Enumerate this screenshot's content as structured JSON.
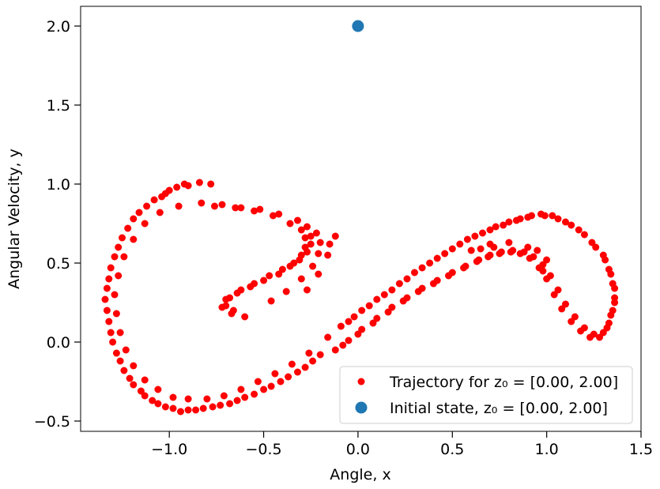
{
  "chart_data": {
    "type": "scatter",
    "xlabel": "Angle, x",
    "ylabel": "Angular Velocity, y",
    "xlim": [
      -1.47,
      1.5
    ],
    "ylim": [
      -0.565,
      2.125
    ],
    "xticks": [
      -1.0,
      -0.5,
      0.0,
      0.5,
      1.0,
      1.5
    ],
    "xtick_labels": [
      "−1.0",
      "−0.5",
      "0.0",
      "0.5",
      "1.0",
      "1.5"
    ],
    "yticks": [
      -0.5,
      0.0,
      0.5,
      1.0,
      1.5,
      2.0
    ],
    "ytick_labels": [
      "−0.5",
      "0.0",
      "0.5",
      "1.0",
      "1.5",
      "2.0"
    ],
    "grid": false,
    "legend_position": "lower-right",
    "legend": [
      {
        "label": "Trajectory for z₀ = [0.00, 2.00]",
        "color": "#ff0000",
        "marker": "small-dot"
      },
      {
        "label": "Initial state, z₀ = [0.00, 2.00]",
        "color": "#1f77b4",
        "marker": "large-dot"
      }
    ],
    "series": [
      {
        "name": "Trajectory for z₀ = [0.00, 2.00]",
        "color": "#ff0000",
        "points": [
          [
            -0.66,
            0.2
          ],
          [
            -0.7,
            0.23
          ],
          [
            -0.68,
            0.28
          ],
          [
            -0.62,
            0.33
          ],
          [
            -0.55,
            0.37
          ],
          [
            -0.47,
            0.42
          ],
          [
            -0.4,
            0.46
          ],
          [
            -0.34,
            0.5
          ],
          [
            -0.3,
            0.55
          ],
          [
            -0.28,
            0.6
          ],
          [
            -0.28,
            0.66
          ],
          [
            -0.3,
            0.71
          ],
          [
            -0.36,
            0.75
          ],
          [
            -0.45,
            0.8
          ],
          [
            -0.55,
            0.83
          ],
          [
            -0.65,
            0.85
          ],
          [
            -0.76,
            0.86
          ],
          [
            -0.6,
            0.16
          ],
          [
            -0.67,
            0.18
          ],
          [
            -0.72,
            0.22
          ],
          [
            -0.7,
            0.27
          ],
          [
            -0.64,
            0.31
          ],
          [
            -0.57,
            0.35
          ],
          [
            -0.5,
            0.39
          ],
          [
            -0.42,
            0.43
          ],
          [
            -0.36,
            0.48
          ],
          [
            -0.31,
            0.52
          ],
          [
            -0.27,
            0.57
          ],
          [
            -0.25,
            0.62
          ],
          [
            -0.25,
            0.67
          ],
          [
            -0.27,
            0.73
          ],
          [
            -0.32,
            0.77
          ],
          [
            -0.42,
            0.81
          ],
          [
            -0.52,
            0.84
          ],
          [
            -0.62,
            0.85
          ],
          [
            -0.72,
            0.87
          ],
          [
            -0.46,
            0.26
          ],
          [
            -0.38,
            0.32
          ],
          [
            -0.3,
            0.4
          ],
          [
            -0.24,
            0.48
          ],
          [
            -0.21,
            0.56
          ],
          [
            -0.2,
            0.63
          ],
          [
            -0.22,
            0.69
          ],
          [
            -0.15,
            0.62
          ],
          [
            -0.12,
            0.67
          ],
          [
            -0.16,
            0.55
          ],
          [
            -0.21,
            0.43
          ],
          [
            -0.27,
            0.33
          ],
          [
            -1.0,
            0.96
          ],
          [
            -1.08,
            0.9
          ],
          [
            -1.16,
            0.82
          ],
          [
            -1.22,
            0.72
          ],
          [
            -1.27,
            0.6
          ],
          [
            -1.31,
            0.47
          ],
          [
            -1.33,
            0.34
          ],
          [
            -1.33,
            0.2
          ],
          [
            -1.31,
            0.06
          ],
          [
            -1.28,
            -0.07
          ],
          [
            -1.24,
            -0.18
          ],
          [
            -1.19,
            -0.27
          ],
          [
            -1.13,
            -0.34
          ],
          [
            -1.06,
            -0.39
          ],
          [
            -0.98,
            -0.42
          ],
          [
            -0.9,
            -0.43
          ],
          [
            -0.82,
            -0.42
          ],
          [
            -0.73,
            -0.4
          ],
          [
            -0.64,
            -0.37
          ],
          [
            -0.55,
            -0.33
          ],
          [
            -0.46,
            -0.28
          ],
          [
            -0.37,
            -0.22
          ],
          [
            -0.28,
            -0.16
          ],
          [
            -0.2,
            -0.08
          ],
          [
            -1.04,
            0.92
          ],
          [
            -1.12,
            0.86
          ],
          [
            -1.19,
            0.78
          ],
          [
            -1.25,
            0.66
          ],
          [
            -1.29,
            0.54
          ],
          [
            -1.32,
            0.4
          ],
          [
            -1.34,
            0.27
          ],
          [
            -1.32,
            0.13
          ],
          [
            -1.3,
            0.0
          ],
          [
            -1.26,
            -0.12
          ],
          [
            -1.21,
            -0.23
          ],
          [
            -1.15,
            -0.31
          ],
          [
            -1.09,
            -0.37
          ],
          [
            -1.02,
            -0.41
          ],
          [
            -0.94,
            -0.44
          ],
          [
            -0.86,
            -0.43
          ],
          [
            -0.77,
            -0.41
          ],
          [
            -0.68,
            -0.39
          ],
          [
            -0.6,
            -0.35
          ],
          [
            -0.5,
            -0.3
          ],
          [
            -0.41,
            -0.25
          ],
          [
            -0.32,
            -0.19
          ],
          [
            -0.24,
            -0.12
          ],
          [
            -0.92,
            1.0
          ],
          [
            -0.84,
            1.01
          ],
          [
            -0.78,
            1.0
          ],
          [
            -0.96,
            0.98
          ],
          [
            -1.02,
            0.94
          ],
          [
            -0.9,
            0.99
          ],
          [
            -0.83,
            0.88
          ],
          [
            -0.95,
            0.86
          ],
          [
            -1.05,
            0.82
          ],
          [
            -1.13,
            0.75
          ],
          [
            -1.19,
            0.65
          ],
          [
            -1.24,
            0.54
          ],
          [
            -1.27,
            0.42
          ],
          [
            -1.29,
            0.3
          ],
          [
            -1.28,
            0.18
          ],
          [
            -1.26,
            0.06
          ],
          [
            -1.23,
            -0.05
          ],
          [
            -1.19,
            -0.15
          ],
          [
            -1.13,
            -0.24
          ],
          [
            -1.06,
            -0.3
          ],
          [
            -0.98,
            -0.35
          ],
          [
            -0.9,
            -0.36
          ],
          [
            -0.8,
            -0.36
          ],
          [
            -0.71,
            -0.34
          ],
          [
            -0.62,
            -0.3
          ],
          [
            -0.53,
            -0.25
          ],
          [
            -0.44,
            -0.2
          ],
          [
            -0.35,
            -0.14
          ],
          [
            -0.26,
            -0.07
          ],
          [
            -0.12,
            -0.05
          ],
          [
            -0.05,
            0.01
          ],
          [
            0.02,
            0.08
          ],
          [
            0.1,
            0.15
          ],
          [
            0.18,
            0.22
          ],
          [
            0.26,
            0.28
          ],
          [
            0.34,
            0.34
          ],
          [
            0.42,
            0.39
          ],
          [
            0.5,
            0.44
          ],
          [
            0.57,
            0.48
          ],
          [
            0.64,
            0.52
          ],
          [
            0.7,
            0.55
          ],
          [
            0.76,
            0.57
          ],
          [
            0.82,
            0.58
          ],
          [
            0.88,
            0.57
          ],
          [
            0.93,
            0.54
          ],
          [
            0.98,
            0.49
          ],
          [
            1.02,
            0.42
          ],
          [
            1.06,
            0.33
          ],
          [
            1.1,
            0.24
          ],
          [
            1.15,
            0.16
          ],
          [
            1.2,
            0.09
          ],
          [
            1.25,
            0.05
          ],
          [
            1.3,
            0.06
          ],
          [
            1.33,
            0.12
          ],
          [
            1.35,
            0.2
          ],
          [
            1.36,
            0.28
          ],
          [
            1.35,
            0.37
          ],
          [
            1.33,
            0.46
          ],
          [
            1.3,
            0.55
          ],
          [
            1.24,
            0.63
          ],
          [
            1.17,
            0.71
          ],
          [
            1.1,
            0.76
          ],
          [
            1.03,
            0.8
          ],
          [
            0.97,
            0.81
          ],
          [
            0.9,
            0.79
          ],
          [
            0.84,
            0.77
          ],
          [
            0.77,
            0.74
          ],
          [
            0.7,
            0.71
          ],
          [
            0.62,
            0.67
          ],
          [
            0.54,
            0.62
          ],
          [
            0.46,
            0.56
          ],
          [
            0.38,
            0.5
          ],
          [
            0.3,
            0.44
          ],
          [
            0.22,
            0.37
          ],
          [
            0.14,
            0.3
          ],
          [
            0.06,
            0.23
          ],
          [
            -0.02,
            0.16
          ],
          [
            -0.09,
            0.1
          ],
          [
            -0.16,
            0.03
          ],
          [
            -0.08,
            -0.02
          ],
          [
            0.0,
            0.05
          ],
          [
            0.08,
            0.12
          ],
          [
            0.16,
            0.19
          ],
          [
            0.24,
            0.26
          ],
          [
            0.32,
            0.32
          ],
          [
            0.4,
            0.37
          ],
          [
            0.48,
            0.42
          ],
          [
            0.56,
            0.47
          ],
          [
            0.63,
            0.51
          ],
          [
            0.69,
            0.54
          ],
          [
            0.75,
            0.56
          ],
          [
            0.81,
            0.57
          ],
          [
            0.86,
            0.56
          ],
          [
            0.91,
            0.53
          ],
          [
            0.96,
            0.47
          ],
          [
            1.0,
            0.4
          ],
          [
            1.04,
            0.3
          ],
          [
            1.08,
            0.21
          ],
          [
            1.13,
            0.13
          ],
          [
            1.18,
            0.07
          ],
          [
            1.23,
            0.03
          ],
          [
            1.28,
            0.03
          ],
          [
            1.32,
            0.09
          ],
          [
            1.34,
            0.17
          ],
          [
            1.36,
            0.25
          ],
          [
            1.36,
            0.34
          ],
          [
            1.34,
            0.43
          ],
          [
            1.31,
            0.52
          ],
          [
            1.26,
            0.6
          ],
          [
            1.2,
            0.68
          ],
          [
            1.13,
            0.74
          ],
          [
            1.06,
            0.78
          ],
          [
            0.99,
            0.8
          ],
          [
            0.92,
            0.8
          ],
          [
            0.86,
            0.78
          ],
          [
            0.8,
            0.76
          ],
          [
            0.73,
            0.73
          ],
          [
            0.66,
            0.69
          ],
          [
            0.58,
            0.65
          ],
          [
            0.5,
            0.59
          ],
          [
            0.42,
            0.53
          ],
          [
            0.34,
            0.47
          ],
          [
            0.26,
            0.4
          ],
          [
            0.18,
            0.33
          ],
          [
            0.1,
            0.27
          ],
          [
            0.02,
            0.2
          ],
          [
            -0.05,
            0.13
          ],
          [
            0.9,
            0.6
          ],
          [
            0.95,
            0.58
          ],
          [
            1.0,
            0.52
          ],
          [
            0.98,
            0.45
          ],
          [
            0.6,
            0.58
          ],
          [
            0.7,
            0.62
          ],
          [
            0.8,
            0.63
          ],
          [
            0.72,
            0.6
          ],
          [
            0.65,
            0.59
          ]
        ]
      },
      {
        "name": "Initial state, z₀ = [0.00, 2.00]",
        "color": "#1f77b4",
        "points": [
          [
            0.0,
            2.0
          ]
        ]
      }
    ]
  }
}
